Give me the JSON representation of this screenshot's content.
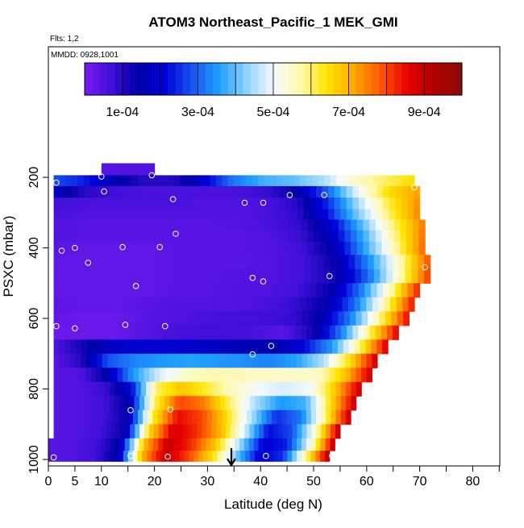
{
  "chart_data": {
    "type": "heatmap",
    "title": "ATOM3 Northeast_Pacific_1 MEK_GMI",
    "annotations": [
      "Flts: 1,2",
      "MMDD: 0928,1001"
    ],
    "xlabel": "Latitude (deg N)",
    "ylabel": "PSXC (mbar)",
    "xlim": [
      0,
      85
    ],
    "ylim": [
      1000,
      0
    ],
    "x_ticks": [
      0,
      5,
      10,
      20,
      30,
      40,
      50,
      60,
      70,
      80
    ],
    "y_ticks": [
      200,
      400,
      600,
      800,
      1000
    ],
    "colorbar": {
      "min": 0,
      "max": 0.001,
      "tick_values": [
        0.0001,
        0.0003,
        0.0005,
        0.0007,
        0.0009
      ],
      "tick_labels": [
        "1e-04",
        "3e-04",
        "5e-04",
        "7e-04",
        "9e-04"
      ],
      "colors": [
        "#7a1cf0",
        "#3f0fd8",
        "#0000a8",
        "#0000d8",
        "#1a55f0",
        "#1fa0ff",
        "#8ed2ff",
        "#f4faff",
        "#fff9b0",
        "#ffe400",
        "#ffa800",
        "#ff5500",
        "#e60000",
        "#b00000",
        "#8b0a0a"
      ]
    },
    "layers": [
      {
        "p": 178,
        "lat0": 10,
        "lat1": 20,
        "vals": [
          4e-05,
          5e-05,
          5e-05
        ]
      },
      {
        "p": 210,
        "lat0": 1,
        "lat1": 69,
        "vals": [
          0.00028,
          0.00024,
          0.00016,
          0.0001,
          0.0001,
          0.0002,
          0.00032,
          0.00038,
          0.0004,
          0.00045,
          0.00055,
          0.0006,
          0.00065
        ]
      },
      {
        "p": 240,
        "lat0": 1,
        "lat1": 70,
        "vals": [
          0.00018,
          0.0001,
          7e-05,
          6e-05,
          6e-05,
          6e-05,
          6e-05,
          8e-05,
          0.00015,
          0.0003,
          0.0005,
          0.00065,
          0.00072
        ]
      },
      {
        "p": 275,
        "lat0": 1,
        "lat1": 70,
        "vals": [
          7e-05,
          6e-05,
          6e-05,
          6e-05,
          6e-05,
          5e-05,
          5e-05,
          6e-05,
          0.0001,
          0.00025,
          0.00045,
          0.00062,
          0.00074
        ]
      },
      {
        "p": 305,
        "lat0": 1,
        "lat1": 70,
        "vals": [
          6e-05,
          5e-05,
          5e-05,
          5e-05,
          5e-05,
          5e-05,
          5e-05,
          6e-05,
          9e-05,
          0.00023,
          0.00042,
          0.0006,
          0.00075
        ]
      },
      {
        "p": 335,
        "lat0": 1,
        "lat1": 71,
        "vals": [
          5e-05,
          4e-05,
          4e-05,
          4e-05,
          4e-05,
          4e-05,
          5e-05,
          6e-05,
          9e-05,
          0.0002,
          0.0004,
          0.0006,
          0.00076
        ]
      },
      {
        "p": 365,
        "lat0": 1,
        "lat1": 71,
        "vals": [
          5e-05,
          4e-05,
          4e-05,
          4e-05,
          4e-05,
          4e-05,
          4e-05,
          5e-05,
          8e-05,
          0.00018,
          0.00037,
          0.00058,
          0.00077
        ]
      },
      {
        "p": 400,
        "lat0": 1,
        "lat1": 71,
        "vals": [
          4e-05,
          3e-05,
          3e-05,
          3e-05,
          4e-05,
          4e-05,
          4e-05,
          5e-05,
          7e-05,
          0.00015,
          0.00035,
          0.00056,
          0.00078
        ]
      },
      {
        "p": 440,
        "lat0": 1,
        "lat1": 72,
        "vals": [
          3e-05,
          3e-05,
          3e-05,
          3e-05,
          4e-05,
          4e-05,
          4e-05,
          5e-05,
          7e-05,
          0.00014,
          0.00033,
          0.00055,
          0.0008
        ]
      },
      {
        "p": 480,
        "lat0": 1,
        "lat1": 72,
        "vals": [
          3e-05,
          3e-05,
          3e-05,
          3e-05,
          4e-05,
          4e-05,
          5e-05,
          5e-05,
          7e-05,
          0.00013,
          0.0003,
          0.00055,
          0.00082
        ]
      },
      {
        "p": 520,
        "lat0": 1,
        "lat1": 70,
        "vals": [
          3e-05,
          3e-05,
          3e-05,
          3e-05,
          4e-05,
          4e-05,
          5e-05,
          5e-05,
          7e-05,
          0.00013,
          0.0003,
          0.00055,
          0.00084
        ]
      },
      {
        "p": 560,
        "lat0": 1,
        "lat1": 69,
        "vals": [
          4e-05,
          3e-05,
          3e-05,
          4e-05,
          5e-05,
          5e-05,
          5e-05,
          6e-05,
          8e-05,
          0.00014,
          0.0003,
          0.00056,
          0.00085
        ]
      },
      {
        "p": 600,
        "lat0": 1,
        "lat1": 68,
        "vals": [
          3e-05,
          2e-05,
          2e-05,
          4e-05,
          5e-05,
          6e-05,
          7e-05,
          7e-05,
          8e-05,
          0.00015,
          0.00032,
          0.00058,
          0.00086
        ]
      },
      {
        "p": 640,
        "lat0": 1,
        "lat1": 66,
        "vals": [
          2e-05,
          2e-05,
          2e-05,
          4e-05,
          6e-05,
          7e-05,
          7e-05,
          6e-05,
          4e-05,
          0.00012,
          0.00032,
          0.0006,
          0.00087
        ]
      },
      {
        "p": 680,
        "lat0": 1,
        "lat1": 64,
        "vals": [
          5e-05,
          0.00012,
          0.00018,
          0.0002,
          0.0002,
          0.00019,
          0.00018,
          0.00016,
          0.00015,
          0.00022,
          0.00035,
          0.0006,
          0.00088
        ]
      },
      {
        "p": 720,
        "lat0": 1,
        "lat1": 62,
        "vals": [
          4e-05,
          0.0001,
          0.00028,
          0.00033,
          0.00035,
          0.00036,
          0.00035,
          0.00034,
          0.00033,
          0.00036,
          0.00045,
          0.00065,
          0.00089
        ]
      },
      {
        "p": 760,
        "lat0": 1,
        "lat1": 61,
        "vals": [
          4e-05,
          5e-05,
          0.00015,
          0.00035,
          0.00048,
          0.00055,
          0.00057,
          0.00056,
          0.00055,
          0.00055,
          0.00055,
          0.00068,
          0.00089
        ]
      },
      {
        "p": 800,
        "lat0": 1,
        "lat1": 59,
        "vals": [
          4e-05,
          5e-05,
          8e-05,
          0.0002,
          0.0006,
          0.00068,
          0.00062,
          0.00055,
          0.0005,
          0.00048,
          0.0005,
          0.00068,
          0.0009
        ]
      },
      {
        "p": 840,
        "lat0": 1,
        "lat1": 58,
        "vals": [
          4e-05,
          5e-05,
          7e-05,
          0.00015,
          0.0006,
          0.0008,
          0.00075,
          0.0006,
          0.00045,
          0.00035,
          0.00038,
          0.00065,
          0.0009
        ]
      },
      {
        "p": 880,
        "lat0": 1,
        "lat1": 57,
        "vals": [
          4e-05,
          5e-05,
          7e-05,
          0.00014,
          0.00062,
          0.00085,
          0.0008,
          0.00065,
          0.00045,
          0.00025,
          0.00032,
          0.0006,
          0.00091
        ]
      },
      {
        "p": 920,
        "lat0": 1,
        "lat1": 55,
        "vals": [
          4e-05,
          5e-05,
          7e-05,
          0.00014,
          0.00065,
          0.00088,
          0.00082,
          0.0007,
          0.00048,
          0.00022,
          0.00028,
          0.00055,
          0.00092
        ]
      },
      {
        "p": 960,
        "lat0": 0,
        "lat1": 54,
        "vals": [
          4e-05,
          5e-05,
          7e-05,
          0.00015,
          0.00068,
          0.0009,
          0.00082,
          0.00068,
          0.00045,
          0.0002,
          0.00024,
          0.00052,
          0.00092
        ]
      },
      {
        "p": 990,
        "lat0": 0,
        "lat1": 53,
        "vals": [
          4e-05,
          5e-05,
          7e-05,
          0.00016,
          0.0007,
          0.0009,
          0.0008,
          0.00065,
          0.00042,
          0.0002,
          0.00025,
          0.00058,
          0.00093
        ]
      }
    ],
    "observations": [
      {
        "lat": 1.5,
        "p": 215
      },
      {
        "lat": 10,
        "p": 198
      },
      {
        "lat": 19.5,
        "p": 194
      },
      {
        "lat": 10.5,
        "p": 240
      },
      {
        "lat": 23.5,
        "p": 262
      },
      {
        "lat": 37,
        "p": 272
      },
      {
        "lat": 40.5,
        "p": 272
      },
      {
        "lat": 45.5,
        "p": 250
      },
      {
        "lat": 52,
        "p": 250
      },
      {
        "lat": 58.5,
        "p": 228
      },
      {
        "lat": 69,
        "p": 228
      },
      {
        "lat": 24,
        "p": 360
      },
      {
        "lat": 2.5,
        "p": 408
      },
      {
        "lat": 5,
        "p": 400
      },
      {
        "lat": 14,
        "p": 398
      },
      {
        "lat": 21,
        "p": 398
      },
      {
        "lat": 7.5,
        "p": 442
      },
      {
        "lat": 38.5,
        "p": 485
      },
      {
        "lat": 40.5,
        "p": 495
      },
      {
        "lat": 53,
        "p": 480
      },
      {
        "lat": 16.5,
        "p": 508
      },
      {
        "lat": 1.5,
        "p": 622
      },
      {
        "lat": 5,
        "p": 628
      },
      {
        "lat": 14.5,
        "p": 618
      },
      {
        "lat": 22,
        "p": 622
      },
      {
        "lat": 42,
        "p": 678
      },
      {
        "lat": 38.5,
        "p": 702
      },
      {
        "lat": 53.5,
        "p": 718
      },
      {
        "lat": 15.5,
        "p": 860
      },
      {
        "lat": 23,
        "p": 858
      },
      {
        "lat": 1,
        "p": 994
      },
      {
        "lat": 15.5,
        "p": 990
      },
      {
        "lat": 22.5,
        "p": 992
      },
      {
        "lat": 41,
        "p": 990
      },
      {
        "lat": 53.5,
        "p": 990
      },
      {
        "lat": 71,
        "p": 455
      },
      {
        "lat": 0.2,
        "p": 510
      }
    ],
    "arrow_marker": {
      "lat": 34.5
    }
  }
}
